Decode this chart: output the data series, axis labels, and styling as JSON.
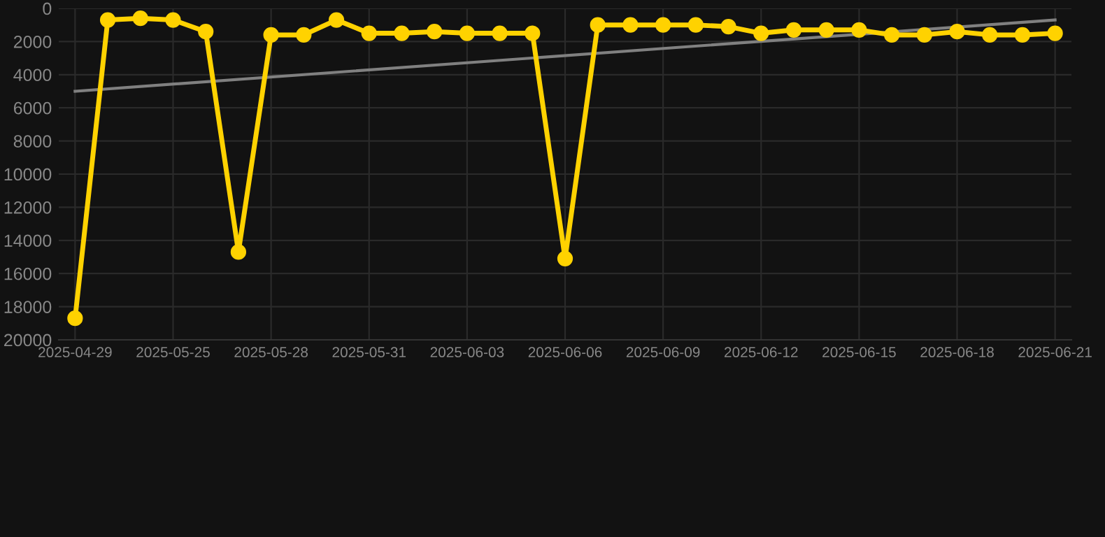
{
  "chart_data": {
    "type": "line",
    "categories": [
      "2025-04-29",
      null,
      null,
      "2025-05-25",
      null,
      null,
      "2025-05-28",
      null,
      null,
      "2025-05-31",
      null,
      null,
      "2025-06-03",
      null,
      null,
      "2025-06-06",
      null,
      null,
      "2025-06-09",
      null,
      null,
      "2025-06-12",
      null,
      null,
      "2025-06-15",
      null,
      null,
      "2025-06-18",
      null,
      null,
      "2025-06-21"
    ],
    "series": [
      {
        "color": "#ffd200",
        "marker": "circle",
        "values": [
          18700,
          700,
          600,
          700,
          1400,
          14700,
          1600,
          1600,
          700,
          1500,
          1500,
          1400,
          1500,
          1500,
          1500,
          15100,
          1000,
          1000,
          1000,
          1000,
          1100,
          1500,
          1300,
          1300,
          1300,
          1600,
          1600,
          1400,
          1600,
          1600,
          1500
        ]
      },
      {
        "color": "#808080",
        "marker": "none",
        "values": [
          5000,
          null,
          null,
          null,
          null,
          null,
          null,
          null,
          null,
          null,
          null,
          null,
          null,
          null,
          null,
          null,
          null,
          null,
          null,
          null,
          null,
          null,
          null,
          null,
          null,
          null,
          null,
          null,
          null,
          null,
          700
        ]
      }
    ],
    "ylim": [
      20000,
      0
    ],
    "yticks": [
      0,
      2000,
      4000,
      6000,
      8000,
      10000,
      12000,
      14000,
      16000,
      18000,
      20000
    ],
    "grid": true,
    "line_style": "solid"
  }
}
